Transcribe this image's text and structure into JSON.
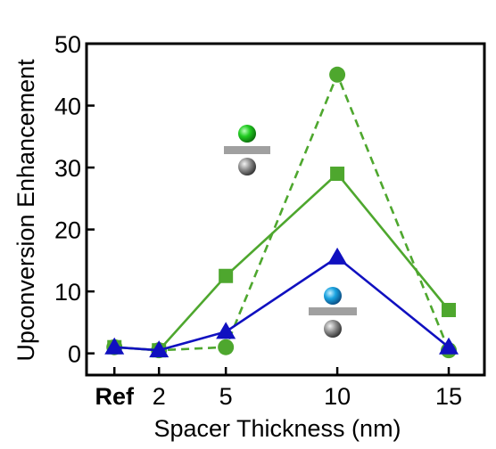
{
  "chart_data": {
    "type": "line",
    "title": "",
    "xlabel": "Spacer Thickness (nm)",
    "ylabel": "Upconversion Enhancement",
    "categories": [
      "Ref",
      "2",
      "5",
      "10",
      "15"
    ],
    "x_positions": [
      0,
      2,
      5,
      10,
      15
    ],
    "xlim": [
      -1.25,
      16.6
    ],
    "ylim": [
      -3.5,
      50
    ],
    "yticks": [
      0,
      10,
      20,
      30,
      40,
      50
    ],
    "ytick_labels": [
      "0",
      "10",
      "20",
      "30",
      "40",
      "50"
    ],
    "grid": false,
    "legend": "none",
    "series": [
      {
        "marker": "square",
        "line": "solid",
        "color": "#4ea72e",
        "values": [
          1.0,
          0.5,
          12.5,
          29.0,
          7.0
        ]
      },
      {
        "marker": "circle",
        "line": "dashed",
        "color": "#4ea72e",
        "values": [
          1.0,
          0.5,
          1.0,
          45.0,
          0.5
        ]
      },
      {
        "marker": "triangle",
        "line": "solid",
        "color": "#1010c0",
        "values": [
          1.0,
          0.5,
          3.5,
          15.5,
          1.0
        ]
      }
    ]
  },
  "insets": [
    {
      "name": "green-particle-on-spacer",
      "particle_color": "#22cc22",
      "spacer_color": "#a0a0a0",
      "base_color": "#808080"
    },
    {
      "name": "blue-particle-on-spacer",
      "particle_color": "#1aa3e0",
      "spacer_color": "#a0a0a0",
      "base_color": "#808080"
    }
  ]
}
